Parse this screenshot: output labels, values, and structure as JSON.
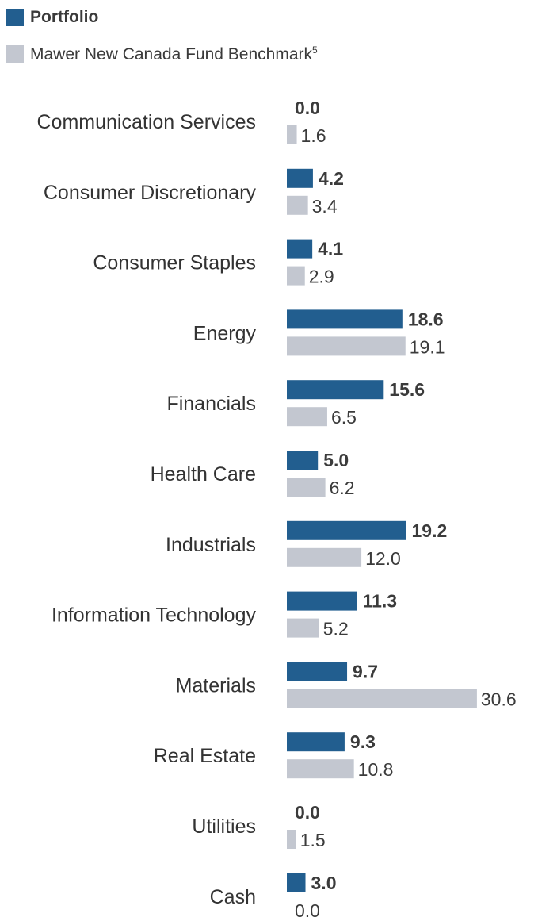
{
  "colors": {
    "portfolio": "#225e8f",
    "benchmark": "#c3c7d0"
  },
  "chart_data": {
    "type": "bar",
    "orientation": "horizontal",
    "legend": [
      "Portfolio",
      "Mawer New Canada Fund Benchmark"
    ],
    "legend_footnote": "5",
    "legend_position": "top-left",
    "categories": [
      "Communication Services",
      "Consumer Discretionary",
      "Consumer Staples",
      "Energy",
      "Financials",
      "Health Care",
      "Industrials",
      "Information Technology",
      "Materials",
      "Real Estate",
      "Utilities",
      "Cash"
    ],
    "series": [
      {
        "name": "Portfolio",
        "values": [
          0.0,
          4.2,
          4.1,
          18.6,
          15.6,
          5.0,
          19.2,
          11.3,
          9.7,
          9.3,
          0.0,
          3.0
        ]
      },
      {
        "name": "Mawer New Canada Fund Benchmark",
        "values": [
          1.6,
          3.4,
          2.9,
          19.1,
          6.5,
          6.2,
          12.0,
          5.2,
          30.6,
          10.8,
          1.5,
          0.0
        ]
      }
    ],
    "value_labels": {
      "portfolio": [
        "0.0",
        "4.2",
        "4.1",
        "18.6",
        "15.6",
        "5.0",
        "19.2",
        "11.3",
        "9.7",
        "9.3",
        "0.0",
        "3.0"
      ],
      "benchmark": [
        "1.6",
        "3.4",
        "2.9",
        "19.1",
        "6.5",
        "6.2",
        "12.0",
        "5.2",
        "30.6",
        "10.8",
        "1.5",
        "0.0"
      ]
    },
    "xlim": [
      0,
      30.6
    ],
    "grid": false
  }
}
